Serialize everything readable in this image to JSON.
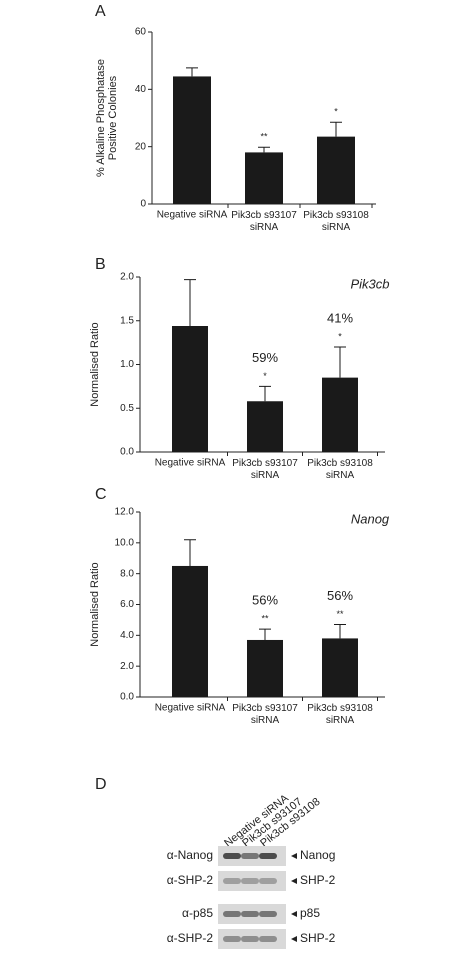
{
  "chart_data": [
    {
      "type": "bar",
      "panel": "A",
      "y_label": [
        "% Alkaline Phosphatase",
        "Positive Colonies"
      ],
      "categories": [
        "Negative siRNA",
        "Pik3cb s93107 siRNA",
        "Pik3cb s93108 siRNA"
      ],
      "values": [
        44.5,
        18,
        23.5
      ],
      "errors": [
        3,
        1.8,
        5
      ],
      "color": "#1a1a1a",
      "significance": [
        null,
        "**",
        "*"
      ],
      "ylim": [
        0,
        60
      ],
      "yticks": [
        0,
        20,
        40,
        60
      ]
    },
    {
      "type": "bar",
      "panel": "B",
      "title": "Pik3cb",
      "y_label": [
        "Normalised Ratio"
      ],
      "categories": [
        "Negative siRNA",
        "Pik3cb s93107 siRNA",
        "Pik3cb s93108 siRNA"
      ],
      "values": [
        1.44,
        0.58,
        0.85
      ],
      "errors": [
        0.53,
        0.17,
        0.35
      ],
      "color": "#1a1a1a",
      "significance": [
        null,
        "*",
        "*"
      ],
      "percent_labels": [
        null,
        "59%",
        "41%"
      ],
      "ylim": [
        0,
        2
      ],
      "yticks": [
        {
          "value": 0,
          "label": "0.0"
        },
        {
          "value": 0.5,
          "label": "0.5"
        },
        {
          "value": 1,
          "label": "1.0"
        },
        {
          "value": 1.5,
          "label": "1.5"
        },
        {
          "value": 2,
          "label": "2.0"
        }
      ]
    },
    {
      "type": "bar",
      "panel": "C",
      "title": "Nanog",
      "y_label": [
        "Normalised Ratio"
      ],
      "categories": [
        "Negative siRNA",
        "Pik3cb s93107 siRNA",
        "Pik3cb s93108 siRNA"
      ],
      "values": [
        8.5,
        3.7,
        3.8
      ],
      "errors": [
        1.7,
        0.7,
        0.9
      ],
      "color": "#1a1a1a",
      "significance": [
        null,
        "**",
        "**"
      ],
      "percent_labels": [
        null,
        "56%",
        "56%"
      ],
      "ylim": [
        0,
        12
      ],
      "yticks": [
        {
          "value": 0,
          "label": "0.0"
        },
        {
          "value": 2,
          "label": "2.0"
        },
        {
          "value": 4,
          "label": "4.0"
        },
        {
          "value": 6,
          "label": "6.0"
        },
        {
          "value": 8,
          "label": "8.0"
        },
        {
          "value": 10,
          "label": "10.0"
        },
        {
          "value": 12,
          "label": "12.0"
        }
      ]
    }
  ],
  "blot": {
    "panel": "D",
    "lanes": [
      "Negative siRNA",
      "Pik3cb s93107",
      "Pik3cb s93108"
    ],
    "rows": [
      {
        "antibody": "α-Nanog",
        "band": "Nanog"
      },
      {
        "antibody": "α-SHP-2",
        "band": "SHP-2"
      },
      {
        "antibody": "α-p85",
        "band": "p85"
      },
      {
        "antibody": "α-SHP-2",
        "band": "SHP-2"
      }
    ]
  }
}
